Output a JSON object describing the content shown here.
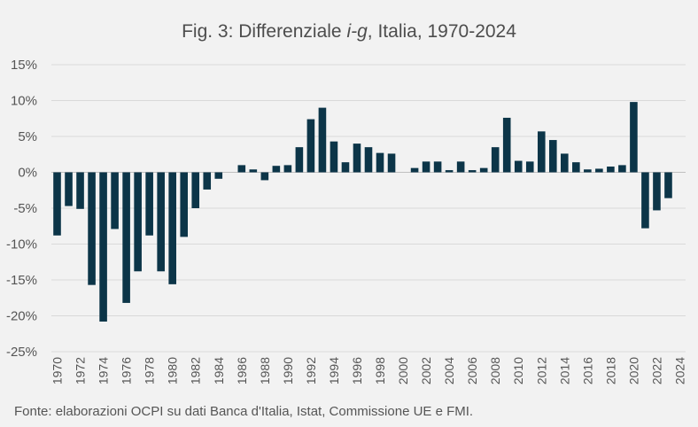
{
  "title_parts": {
    "before": "Fig. 3: Differenziale ",
    "italic": "i-g",
    "after": ", Italia, 1970-2024"
  },
  "source": "Fonte: elaborazioni OCPI su dati Banca d'Italia, Istat, Commissione UE e FMI.",
  "colors": {
    "bar": "#0c3548",
    "grid": "#d9d9d9",
    "background": "#f2f2f2"
  },
  "chart_data": {
    "type": "bar",
    "title": "Fig. 3: Differenziale i-g, Italia, 1970-2024",
    "xlabel": "",
    "ylabel": "",
    "ylim": [
      -25,
      15
    ],
    "y_ticks": [
      15,
      10,
      5,
      0,
      -5,
      -10,
      -15,
      -20,
      -25
    ],
    "y_tick_labels": [
      "15%",
      "10%",
      "5%",
      "0%",
      "-5%",
      "-10%",
      "-15%",
      "-20%",
      "-25%"
    ],
    "x_tick_labels": [
      "1970",
      "1972",
      "1974",
      "1976",
      "1978",
      "1980",
      "1982",
      "1984",
      "1986",
      "1988",
      "1990",
      "1992",
      "1994",
      "1996",
      "1998",
      "2000",
      "2002",
      "2004",
      "2006",
      "2008",
      "2010",
      "2012",
      "2014",
      "2016",
      "2018",
      "2020",
      "2022",
      "2024"
    ],
    "categories": [
      "1970",
      "1971",
      "1972",
      "1973",
      "1974",
      "1975",
      "1976",
      "1977",
      "1978",
      "1979",
      "1980",
      "1981",
      "1982",
      "1983",
      "1984",
      "1985",
      "1986",
      "1987",
      "1988",
      "1989",
      "1990",
      "1991",
      "1992",
      "1993",
      "1994",
      "1995",
      "1996",
      "1997",
      "1998",
      "1999",
      "2000",
      "2001",
      "2002",
      "2003",
      "2004",
      "2005",
      "2006",
      "2007",
      "2008",
      "2009",
      "2010",
      "2011",
      "2012",
      "2013",
      "2014",
      "2015",
      "2016",
      "2017",
      "2018",
      "2019",
      "2020",
      "2021",
      "2022",
      "2023",
      "2024"
    ],
    "values": [
      -8.8,
      -4.7,
      -5.1,
      -15.7,
      -20.8,
      -7.9,
      -18.2,
      -13.8,
      -8.8,
      -13.8,
      -15.6,
      -9.0,
      -5.0,
      -2.4,
      -0.9,
      0.0,
      1.0,
      0.4,
      -1.1,
      0.9,
      1.0,
      3.5,
      7.4,
      9.0,
      4.3,
      1.4,
      4.0,
      3.5,
      2.7,
      2.6,
      0.0,
      0.6,
      1.5,
      1.5,
      0.3,
      1.5,
      0.3,
      0.6,
      3.5,
      7.6,
      1.6,
      1.5,
      5.7,
      4.5,
      2.6,
      1.4,
      0.4,
      0.5,
      0.8,
      1.0,
      9.8,
      -7.8,
      -5.3,
      -3.6,
      0.0
    ],
    "grid": true,
    "legend": "none"
  }
}
